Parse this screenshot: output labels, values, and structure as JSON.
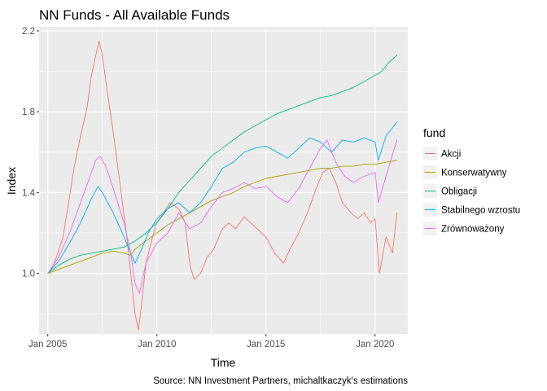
{
  "chart_data": {
    "type": "line",
    "title": "NN Funds - All Available Funds",
    "xlabel": "Time",
    "ylabel": "Index",
    "caption": "Source: NN Investment Partners, michaltkaczyk's estimations",
    "xlim": [
      2004.6,
      2021.5
    ],
    "ylim": [
      0.7,
      2.22
    ],
    "x_ticks": [
      {
        "value": 2005,
        "label": "Jan 2005"
      },
      {
        "value": 2010,
        "label": "Jan 2010"
      },
      {
        "value": 2015,
        "label": "Jan 2015"
      },
      {
        "value": 2020,
        "label": "Jan 2020"
      }
    ],
    "y_ticks": [
      {
        "value": 1.0,
        "label": "1.0"
      },
      {
        "value": 1.4,
        "label": "1.4"
      },
      {
        "value": 1.8,
        "label": "1.8"
      },
      {
        "value": 2.2,
        "label": "2.2"
      }
    ],
    "grid": true,
    "panel_background": "#ebebeb",
    "legend": {
      "title": "fund",
      "position": "right"
    },
    "series": [
      {
        "name": "Akcji",
        "color": "#F8766D",
        "x": [
          2005.0,
          2005.2,
          2005.4,
          2005.7,
          2006.0,
          2006.2,
          2006.5,
          2006.8,
          2007.0,
          2007.2,
          2007.35,
          2007.5,
          2007.7,
          2008.0,
          2008.3,
          2008.6,
          2008.8,
          2009.0,
          2009.15,
          2009.3,
          2009.5,
          2009.8,
          2010.0,
          2010.3,
          2010.6,
          2011.0,
          2011.3,
          2011.5,
          2011.7,
          2012.0,
          2012.3,
          2012.6,
          2013.0,
          2013.3,
          2013.6,
          2014.0,
          2014.3,
          2014.6,
          2015.0,
          2015.4,
          2015.8,
          2016.1,
          2016.5,
          2016.9,
          2017.3,
          2017.6,
          2017.9,
          2018.2,
          2018.5,
          2018.9,
          2019.2,
          2019.5,
          2019.8,
          2020.0,
          2020.2,
          2020.5,
          2020.8,
          2021.0
        ],
        "y": [
          1.0,
          1.03,
          1.08,
          1.18,
          1.38,
          1.52,
          1.68,
          1.82,
          1.98,
          2.08,
          2.15,
          2.08,
          1.92,
          1.7,
          1.45,
          1.2,
          1.0,
          0.8,
          0.72,
          0.85,
          1.05,
          1.18,
          1.25,
          1.3,
          1.35,
          1.32,
          1.25,
          1.05,
          0.97,
          1.0,
          1.08,
          1.12,
          1.22,
          1.25,
          1.22,
          1.28,
          1.25,
          1.22,
          1.18,
          1.1,
          1.05,
          1.12,
          1.2,
          1.3,
          1.42,
          1.5,
          1.52,
          1.45,
          1.35,
          1.3,
          1.27,
          1.3,
          1.25,
          1.27,
          1.0,
          1.18,
          1.1,
          1.3
        ]
      },
      {
        "name": "Konserwatywny",
        "color": "#A3A500",
        "x": [
          2005.0,
          2006.0,
          2007.0,
          2007.5,
          2008.0,
          2008.5,
          2008.8,
          2009.0,
          2009.5,
          2010.0,
          2010.5,
          2011.0,
          2011.5,
          2012.0,
          2012.5,
          2013.0,
          2013.5,
          2014.0,
          2014.5,
          2015.0,
          2015.5,
          2016.0,
          2016.5,
          2017.0,
          2017.5,
          2018.0,
          2018.5,
          2019.0,
          2019.5,
          2020.0,
          2020.5,
          2021.0
        ],
        "y": [
          1.0,
          1.04,
          1.08,
          1.1,
          1.11,
          1.1,
          1.09,
          1.12,
          1.16,
          1.2,
          1.24,
          1.27,
          1.3,
          1.33,
          1.36,
          1.38,
          1.4,
          1.43,
          1.45,
          1.47,
          1.48,
          1.49,
          1.5,
          1.51,
          1.52,
          1.52,
          1.53,
          1.53,
          1.54,
          1.54,
          1.55,
          1.56
        ]
      },
      {
        "name": "Obligacji",
        "color": "#00BF7D",
        "x": [
          2005.0,
          2005.5,
          2006.0,
          2006.5,
          2007.0,
          2007.5,
          2008.0,
          2008.5,
          2009.0,
          2009.5,
          2010.0,
          2010.5,
          2011.0,
          2011.5,
          2012.0,
          2012.5,
          2013.0,
          2013.5,
          2014.0,
          2014.5,
          2015.0,
          2015.5,
          2016.0,
          2016.5,
          2017.0,
          2017.5,
          2018.0,
          2018.5,
          2019.0,
          2019.5,
          2020.0,
          2020.3,
          2020.6,
          2021.0
        ],
        "y": [
          1.0,
          1.04,
          1.07,
          1.09,
          1.1,
          1.11,
          1.12,
          1.13,
          1.16,
          1.2,
          1.25,
          1.32,
          1.4,
          1.46,
          1.52,
          1.58,
          1.62,
          1.66,
          1.7,
          1.73,
          1.76,
          1.79,
          1.81,
          1.83,
          1.85,
          1.87,
          1.88,
          1.9,
          1.92,
          1.95,
          1.98,
          2.0,
          2.04,
          2.08
        ]
      },
      {
        "name": "Stabilnego wzrostu",
        "color": "#00B0F6",
        "x": [
          2005.0,
          2005.5,
          2006.0,
          2006.5,
          2007.0,
          2007.3,
          2007.5,
          2008.0,
          2008.5,
          2008.8,
          2009.0,
          2009.3,
          2009.6,
          2010.0,
          2010.5,
          2011.0,
          2011.5,
          2012.0,
          2012.5,
          2013.0,
          2013.5,
          2014.0,
          2014.5,
          2015.0,
          2015.5,
          2016.0,
          2016.5,
          2017.0,
          2017.5,
          2018.0,
          2018.5,
          2019.0,
          2019.5,
          2020.0,
          2020.15,
          2020.5,
          2021.0
        ],
        "y": [
          1.0,
          1.06,
          1.15,
          1.25,
          1.37,
          1.43,
          1.4,
          1.3,
          1.18,
          1.1,
          1.05,
          1.12,
          1.2,
          1.27,
          1.32,
          1.35,
          1.3,
          1.35,
          1.43,
          1.52,
          1.55,
          1.6,
          1.62,
          1.63,
          1.6,
          1.57,
          1.62,
          1.67,
          1.65,
          1.6,
          1.66,
          1.65,
          1.67,
          1.65,
          1.56,
          1.68,
          1.75
        ]
      },
      {
        "name": "Zrównoważony",
        "color": "#E76BF3",
        "x": [
          2005.0,
          2005.5,
          2006.0,
          2006.5,
          2007.0,
          2007.2,
          2007.4,
          2007.7,
          2008.0,
          2008.5,
          2008.8,
          2009.0,
          2009.2,
          2009.5,
          2010.0,
          2010.5,
          2011.0,
          2011.5,
          2012.0,
          2012.5,
          2013.0,
          2013.5,
          2014.0,
          2014.5,
          2015.0,
          2015.5,
          2016.0,
          2016.5,
          2017.0,
          2017.5,
          2017.8,
          2018.2,
          2018.6,
          2019.0,
          2019.5,
          2020.0,
          2020.15,
          2020.5,
          2021.0
        ],
        "y": [
          1.0,
          1.08,
          1.2,
          1.35,
          1.5,
          1.56,
          1.58,
          1.52,
          1.42,
          1.25,
          1.1,
          0.95,
          0.9,
          1.05,
          1.15,
          1.2,
          1.3,
          1.22,
          1.25,
          1.33,
          1.4,
          1.42,
          1.45,
          1.42,
          1.43,
          1.38,
          1.35,
          1.42,
          1.52,
          1.62,
          1.66,
          1.55,
          1.48,
          1.45,
          1.48,
          1.5,
          1.35,
          1.48,
          1.66
        ]
      }
    ]
  }
}
